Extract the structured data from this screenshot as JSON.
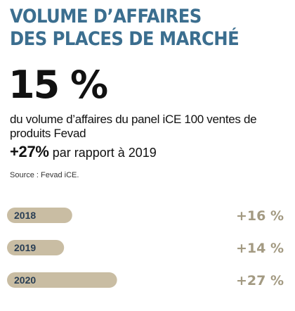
{
  "title_lines": [
    "VOLUME D’AFFAIRES",
    "DES PLACES DE MARCHÉ"
  ],
  "headline_value": "15 %",
  "description": "du volume d’affaires du panel iCE 100 ventes de produits Fevad",
  "growth": {
    "value": "+27%",
    "text": "par rapport à 2019"
  },
  "source": "Source : Fevad iCE.",
  "colors": {
    "title": "#3b6e8f",
    "bar": "#c9bda3",
    "pct_text": "#a39a82",
    "year_text": "#2a3f55"
  },
  "chart_data": {
    "type": "bar",
    "categories": [
      "2018",
      "2019",
      "2020"
    ],
    "values": [
      16,
      14,
      27
    ],
    "value_labels": [
      "+16 %",
      "+14 %",
      "+27 %"
    ],
    "unit": "%"
  }
}
